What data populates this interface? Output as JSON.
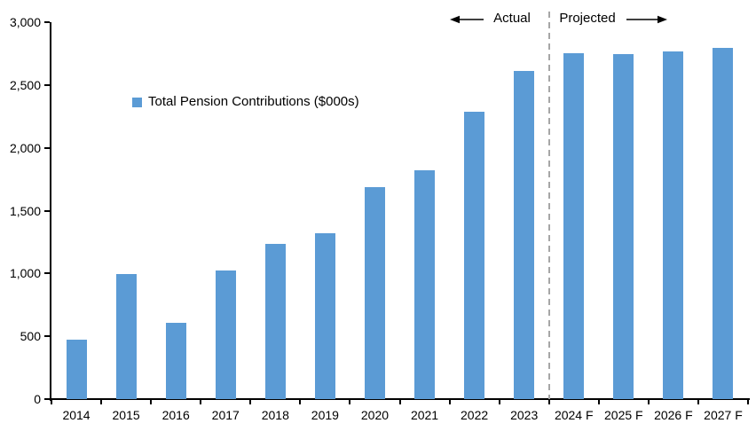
{
  "chart_data": {
    "type": "bar",
    "title": "",
    "legend": {
      "label": "Total Pension Contributions ($000s)",
      "marker_color": "#5b9bd5",
      "position": "inside-top-left"
    },
    "categories": [
      "2014",
      "2015",
      "2016",
      "2017",
      "2018",
      "2019",
      "2020",
      "2021",
      "2022",
      "2023",
      "2024 F",
      "2025 F",
      "2026 F",
      "2027 F"
    ],
    "values": [
      475,
      995,
      610,
      1025,
      1235,
      1320,
      1685,
      1820,
      2285,
      2615,
      2755,
      2745,
      2770,
      2795
    ],
    "xlabel": "",
    "ylabel": "",
    "ylim": [
      0,
      3000
    ],
    "ytick_step": 500,
    "ytick_labels": [
      "0",
      "500",
      "1,000",
      "1,500",
      "2,000",
      "2,500",
      "3,000"
    ],
    "grid": false,
    "bar_color": "#5b9bd5",
    "axis_color": "#000000",
    "divider": {
      "between": [
        "2023",
        "2024 F"
      ],
      "style": "dashed",
      "color": "#a6a6a6"
    },
    "annotations": {
      "actual_label": "Actual",
      "projected_label": "Projected"
    }
  }
}
